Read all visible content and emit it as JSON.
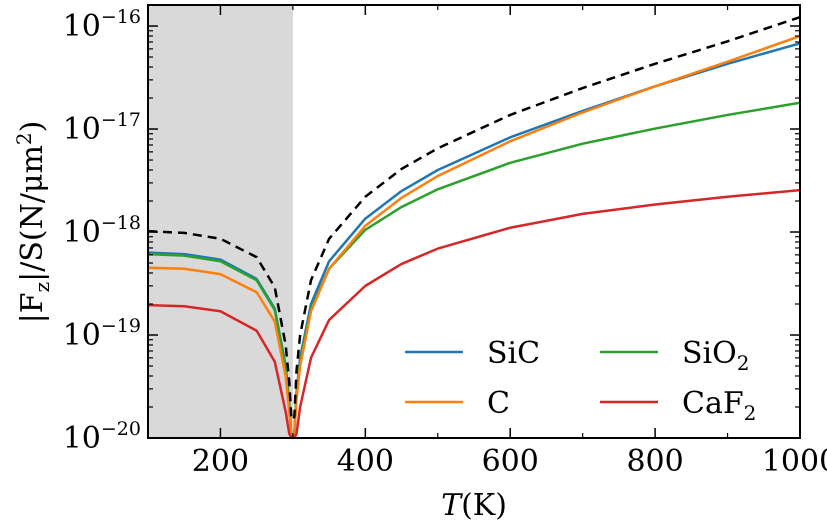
{
  "chart_data": {
    "type": "line",
    "xlabel": {
      "main": "T",
      "unit": "(K)"
    },
    "ylabel": {
      "main": "|F",
      "sub": "z",
      "mid": "|/S(N/μm",
      "sup": "2",
      "end": ")"
    },
    "xlim": [
      100,
      1000
    ],
    "ylim": [
      1e-20,
      1.6e-16
    ],
    "yscale": "log",
    "x_ticks": [
      200,
      400,
      600,
      800,
      1000
    ],
    "y_ticks": [
      {
        "value": 1e-20,
        "base": "10",
        "exp": "−20"
      },
      {
        "value": 1e-19,
        "base": "10",
        "exp": "−19"
      },
      {
        "value": 1e-18,
        "base": "10",
        "exp": "−18"
      },
      {
        "value": 1e-17,
        "base": "10",
        "exp": "−17"
      },
      {
        "value": 1e-16,
        "base": "10",
        "exp": "−16"
      }
    ],
    "shaded_region": {
      "x": [
        100,
        300
      ],
      "color": "#d9d9d9"
    },
    "legend_position": "lower-right",
    "legend_columns": 2,
    "series": [
      {
        "name": "SiC",
        "label_base": "SiC",
        "label_sub": "",
        "color": "#1f77b4",
        "dash": "",
        "x": [
          100,
          150,
          200,
          250,
          275,
          290,
          295,
          298,
          302,
          305,
          310,
          325,
          350,
          400,
          450,
          500,
          600,
          700,
          800,
          900,
          1000
        ],
        "y": [
          6.3e-19,
          6.1e-19,
          5.4e-19,
          3.5e-19,
          1.8e-19,
          5e-20,
          2.2e-20,
          1e-20,
          1.1e-20,
          2.8e-20,
          6e-20,
          2e-19,
          5.2e-19,
          1.35e-18,
          2.5e-18,
          4e-18,
          8.3e-18,
          1.5e-17,
          2.6e-17,
          4.3e-17,
          6.8e-17
        ]
      },
      {
        "name": "SiO2",
        "label_base": "SiO",
        "label_sub": "2",
        "color": "#2ca02c",
        "dash": "",
        "x": [
          100,
          150,
          200,
          250,
          275,
          290,
          295,
          298,
          302,
          305,
          310,
          325,
          350,
          400,
          450,
          500,
          600,
          700,
          800,
          900,
          1000
        ],
        "y": [
          6.1e-19,
          5.9e-19,
          5.2e-19,
          3.4e-19,
          1.75e-19,
          4.8e-20,
          2.1e-20,
          1e-20,
          1.1e-20,
          2.6e-20,
          5.5e-20,
          1.8e-19,
          4.4e-19,
          1.05e-18,
          1.75e-18,
          2.6e-18,
          4.7e-18,
          7.2e-18,
          1.01e-17,
          1.37e-17,
          1.8e-17
        ]
      },
      {
        "name": "C",
        "label_base": "C",
        "label_sub": "",
        "color": "#ff7f0e",
        "dash": "",
        "x": [
          100,
          150,
          200,
          250,
          275,
          290,
          295,
          298,
          302,
          305,
          310,
          325,
          350,
          400,
          450,
          500,
          600,
          700,
          800,
          900,
          1000
        ],
        "y": [
          4.5e-19,
          4.4e-19,
          3.9e-19,
          2.6e-19,
          1.35e-19,
          4e-20,
          1.8e-20,
          1e-20,
          1.1e-20,
          2.4e-20,
          5e-20,
          1.7e-19,
          4.4e-19,
          1.15e-18,
          2.15e-18,
          3.5e-18,
          7.6e-18,
          1.45e-17,
          2.6e-17,
          4.5e-17,
          8e-17
        ]
      },
      {
        "name": "CaF2",
        "label_base": "CaF",
        "label_sub": "2",
        "color": "#d62728",
        "dash": "",
        "x": [
          100,
          150,
          200,
          250,
          275,
          290,
          295,
          298,
          302,
          305,
          310,
          325,
          350,
          400,
          450,
          500,
          600,
          700,
          800,
          900,
          1000
        ],
        "y": [
          1.95e-19,
          1.9e-19,
          1.7e-19,
          1.1e-19,
          5.5e-20,
          1.8e-20,
          1.1e-20,
          1e-20,
          1e-20,
          1.1e-20,
          2e-20,
          6e-20,
          1.4e-19,
          3e-19,
          4.9e-19,
          6.9e-19,
          1.1e-18,
          1.5e-18,
          1.85e-18,
          2.2e-18,
          2.55e-18
        ]
      },
      {
        "name": "",
        "label_base": "",
        "label_sub": "",
        "color": "#000000",
        "dash": "9,6",
        "x": [
          100,
          150,
          200,
          250,
          275,
          290,
          295,
          298,
          302,
          305,
          310,
          325,
          350,
          400,
          450,
          500,
          600,
          700,
          800,
          900,
          1000
        ],
        "y": [
          1.02e-18,
          9.8e-19,
          8.6e-19,
          5.7e-19,
          2.9e-19,
          8e-20,
          3.5e-20,
          1.5e-20,
          1.6e-20,
          4.5e-20,
          1e-19,
          3.4e-19,
          8.6e-19,
          2.2e-18,
          4.1e-18,
          6.5e-18,
          1.37e-17,
          2.5e-17,
          4.3e-17,
          7.1e-17,
          1.22e-16
        ]
      }
    ]
  }
}
